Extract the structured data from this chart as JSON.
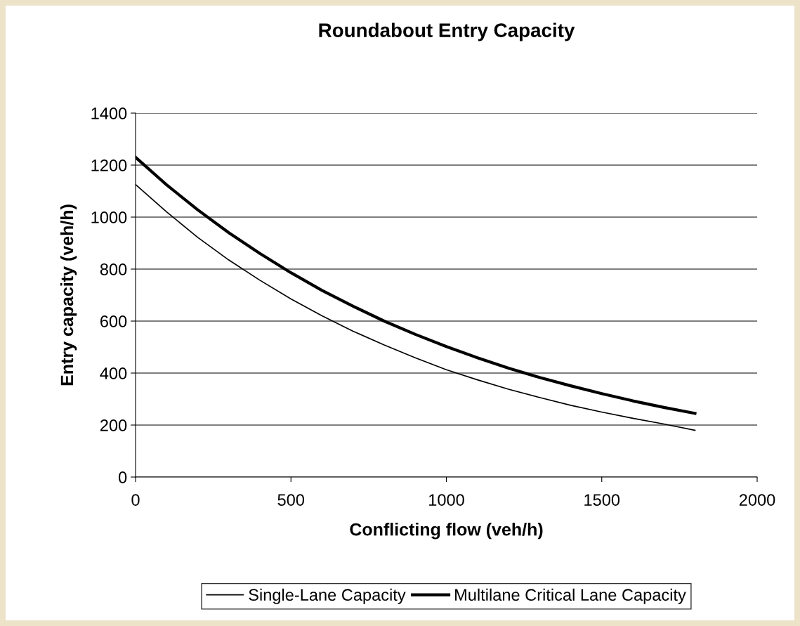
{
  "chart_data": {
    "type": "line",
    "title": "Roundabout Entry Capacity",
    "xlabel": "Conflicting flow (veh/h)",
    "ylabel": "Entry capacity (veh/h)",
    "x": [
      0,
      100,
      200,
      300,
      400,
      500,
      600,
      700,
      800,
      900,
      1000,
      1100,
      1200,
      1300,
      1400,
      1500,
      1600,
      1700,
      1800
    ],
    "series": [
      {
        "name": "Single-Lane Capacity",
        "color": "#000000",
        "values": [
          1125,
          1020,
          922,
          835,
          757,
          685,
          620,
          561,
          508,
          459,
          413,
          374,
          338,
          306,
          276,
          250,
          226,
          204,
          180
        ]
      },
      {
        "name": "Multilane Critical Lane Capacity",
        "color": "#000000",
        "values": [
          1230,
          1124,
          1028,
          940,
          860,
          786,
          718,
          657,
          600,
          549,
          502,
          459,
          419,
          383,
          351,
          321,
          293,
          268,
          245
        ]
      }
    ],
    "xlim": [
      0,
      2000
    ],
    "xticks": [
      0,
      500,
      1000,
      1500,
      2000
    ],
    "ylim": [
      0,
      1400
    ],
    "yticks": [
      0,
      200,
      400,
      600,
      800,
      1000,
      1200,
      1400
    ],
    "grid": "y",
    "legend": "bottom",
    "marker": "none",
    "line_style": "solid"
  }
}
